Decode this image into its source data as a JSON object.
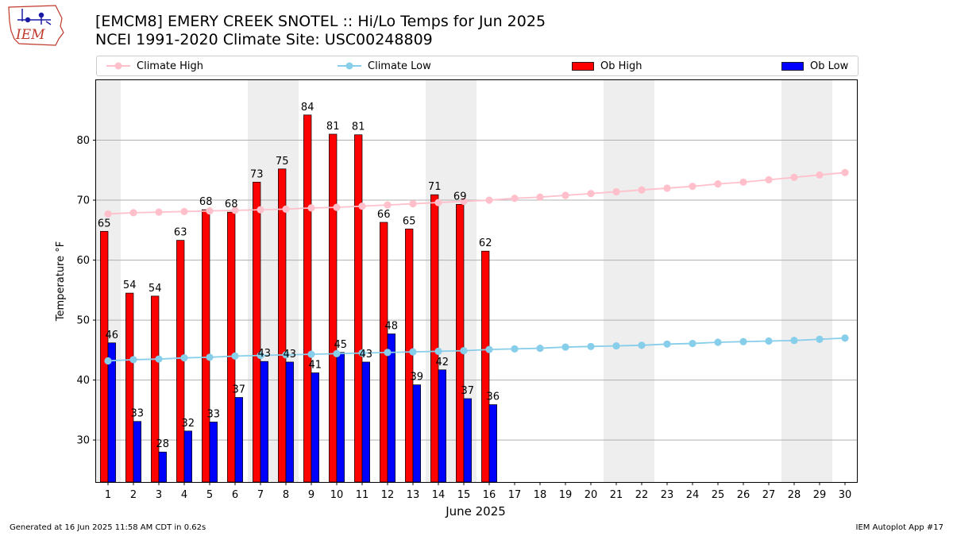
{
  "header": {
    "logo_text": "IEM",
    "title_line1": "[EMCM8] EMERY CREEK SNOTEL :: Hi/Lo Temps for Jun 2025",
    "title_line2": "NCEI 1991-2020 Climate Site: USC00248809"
  },
  "legend": {
    "items": [
      {
        "label": "Climate High",
        "kind": "line",
        "color": "#ffc0cb"
      },
      {
        "label": "Climate Low",
        "kind": "line",
        "color": "#87ceeb"
      },
      {
        "label": "Ob High",
        "kind": "bar",
        "color": "#ff0000"
      },
      {
        "label": "Ob Low",
        "kind": "bar",
        "color": "#0000ff"
      }
    ]
  },
  "footer": {
    "left": "Generated at 16 Jun 2025 11:58 AM CDT in 0.62s",
    "right": "IEM Autoplot App #17"
  },
  "chart_data": {
    "type": "bar",
    "xlabel": "June 2025",
    "ylabel": "Temperature °F",
    "ylim": [
      23,
      90
    ],
    "yticks": [
      30,
      40,
      50,
      60,
      70,
      80
    ],
    "grid": "horizontal",
    "legend_position": "top",
    "days": [
      1,
      2,
      3,
      4,
      5,
      6,
      7,
      8,
      9,
      10,
      11,
      12,
      13,
      14,
      15,
      16,
      17,
      18,
      19,
      20,
      21,
      22,
      23,
      24,
      25,
      26,
      27,
      28,
      29,
      30
    ],
    "weekend_days": [
      1,
      7,
      8,
      14,
      15,
      21,
      22,
      28,
      29
    ],
    "ob_high": [
      65,
      54,
      54,
      63,
      68,
      68,
      73,
      75,
      84,
      81,
      81,
      66,
      65,
      71,
      69,
      62
    ],
    "ob_high_values": [
      64.8,
      54.5,
      54.0,
      63.3,
      68.4,
      68.0,
      73.0,
      75.2,
      84.2,
      81.0,
      80.9,
      66.3,
      65.2,
      70.9,
      69.3,
      61.5
    ],
    "ob_low": [
      46,
      33,
      28,
      32,
      33,
      37,
      43,
      43,
      41,
      45,
      43,
      48,
      39,
      42,
      37,
      36
    ],
    "ob_low_values": [
      46.2,
      33.1,
      28.0,
      31.5,
      33.0,
      37.1,
      43.1,
      43.0,
      41.2,
      44.6,
      43.0,
      47.7,
      39.2,
      41.7,
      36.9,
      35.9
    ],
    "climate_high": [
      67.7,
      67.9,
      68.0,
      68.1,
      68.2,
      68.3,
      68.4,
      68.5,
      68.7,
      68.8,
      69.0,
      69.2,
      69.4,
      69.6,
      69.8,
      70.0,
      70.3,
      70.5,
      70.8,
      71.1,
      71.4,
      71.7,
      72.0,
      72.3,
      72.7,
      73.0,
      73.4,
      73.8,
      74.2,
      74.6
    ],
    "climate_low": [
      43.2,
      43.4,
      43.5,
      43.7,
      43.8,
      44.0,
      44.1,
      44.2,
      44.3,
      44.4,
      44.5,
      44.6,
      44.7,
      44.8,
      44.9,
      45.1,
      45.2,
      45.3,
      45.5,
      45.6,
      45.7,
      45.8,
      46.0,
      46.1,
      46.3,
      46.4,
      46.5,
      46.6,
      46.8,
      47.0
    ],
    "colors": {
      "ob_high": "#ff0000",
      "ob_low": "#0000ff",
      "climate_high": "#ffc0cb",
      "climate_low": "#87ceeb",
      "weekend_shade": "#eeeeee",
      "grid": "#b0b0b0"
    }
  }
}
